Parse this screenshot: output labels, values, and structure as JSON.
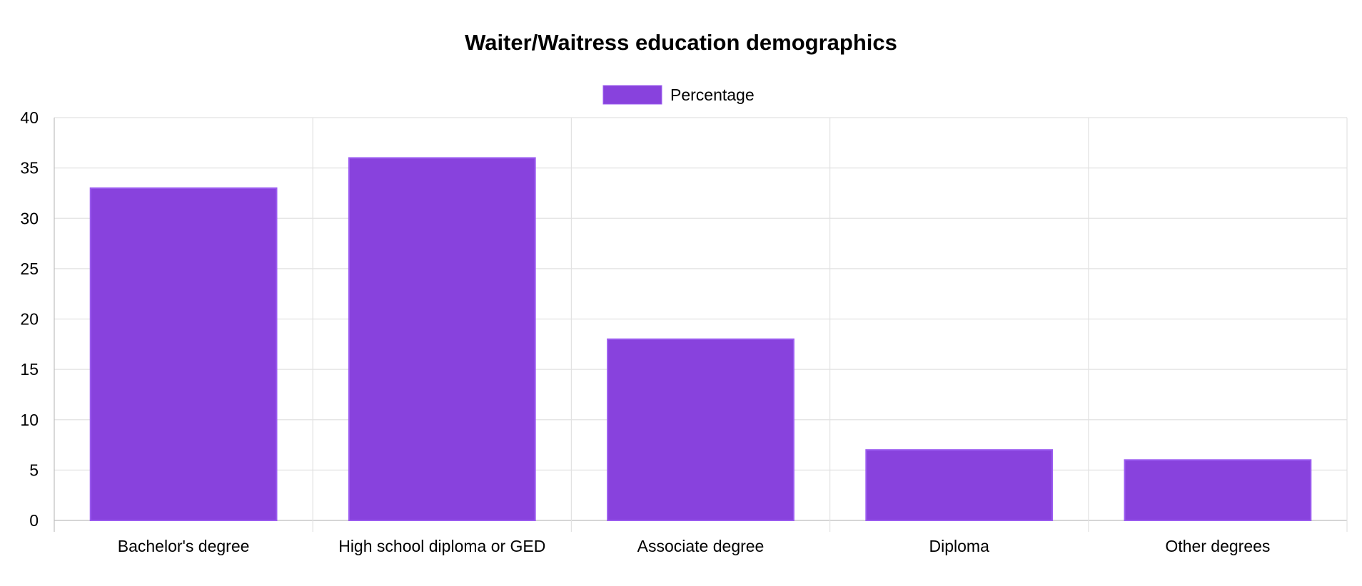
{
  "chart_data": {
    "type": "bar",
    "title": "Waiter/Waitress education demographics",
    "categories": [
      "Bachelor's degree",
      "High school diploma or GED",
      "Associate degree",
      "Diploma",
      "Other degrees"
    ],
    "series": [
      {
        "name": "Percentage",
        "values": [
          33,
          36,
          18,
          7,
          6
        ],
        "color": "#8842DD",
        "border_color": "#9B5CF0"
      }
    ],
    "ylim": [
      0,
      40
    ],
    "yticks": [
      "0",
      "5",
      "10",
      "15",
      "20",
      "25",
      "30",
      "35",
      "40"
    ],
    "grid": true,
    "legend_position": "top"
  }
}
